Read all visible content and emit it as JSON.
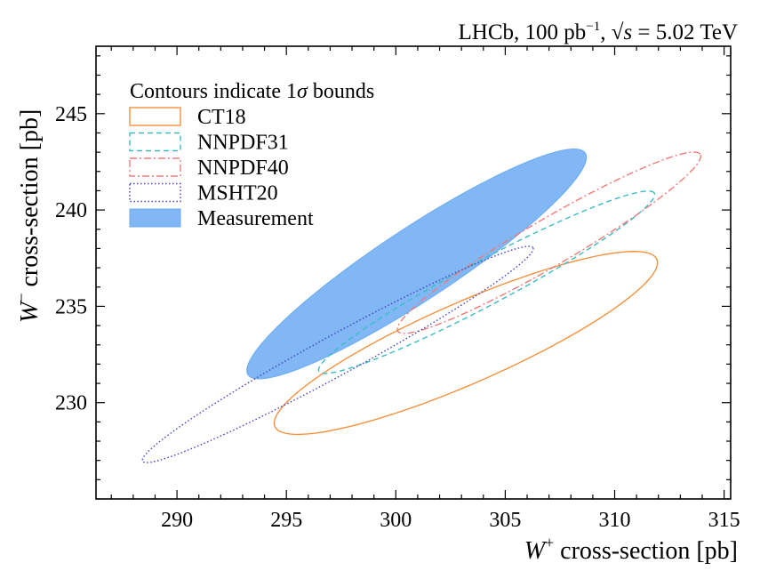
{
  "chart_data": {
    "type": "scatter",
    "header": "LHCb, 100 pb",
    "header_sup": "−1",
    "header_tail": ", ",
    "header_sqrt": "√s",
    "header_energy": " = 5.02 TeV",
    "xlabel_sym": "W",
    "xlabel_sup": "+",
    "xlabel_text": " cross-section [pb]",
    "ylabel_sym": "W",
    "ylabel_sup": "−",
    "ylabel_text": " cross-section [pb]",
    "xlim": [
      286.3,
      315.3
    ],
    "ylim": [
      225.0,
      248.5
    ],
    "xticks": [
      290,
      295,
      300,
      305,
      310,
      315
    ],
    "yticks": [
      230,
      235,
      240,
      245
    ],
    "xtick_labels": [
      "290",
      "295",
      "300",
      "305",
      "310",
      "315"
    ],
    "ytick_labels": [
      "230",
      "235",
      "240",
      "245"
    ],
    "grid": false,
    "legend_position": "top-left",
    "legend_title_prefix": "Contours indicate 1",
    "legend_title_sigma": "σ",
    "legend_title_suffix": " bounds",
    "series": [
      {
        "name": "CT18",
        "style": "solid",
        "fill": false,
        "color": "#f5913e",
        "center": [
          303.2,
          233.1
        ],
        "angle_deg": 26.7,
        "semi_major": 9.75,
        "semi_minor": 2.05
      },
      {
        "name": "NNPDF31",
        "style": "dashed",
        "fill": false,
        "color": "#3bbcc4",
        "center": [
          304.15,
          236.25
        ],
        "angle_deg": 31.2,
        "semi_major": 8.95,
        "semi_minor": 1.12
      },
      {
        "name": "NNPDF40",
        "style": "dashdot",
        "fill": false,
        "color": "#f07a7a",
        "center": [
          307.0,
          238.3
        ],
        "angle_deg": 33.7,
        "semi_major": 8.3,
        "semi_minor": 1.17
      },
      {
        "name": "MSHT20",
        "style": "dotted",
        "fill": false,
        "color": "#4040c8",
        "center": [
          297.35,
          232.5
        ],
        "angle_deg": 31.9,
        "semi_major": 10.5,
        "semi_minor": 1.0
      },
      {
        "name": "Measurement",
        "style": "filled",
        "fill": true,
        "color": "#6aaaf2",
        "center": [
          300.95,
          237.2
        ],
        "angle_deg": 37.0,
        "semi_major": 9.62,
        "semi_minor": 1.8
      }
    ]
  }
}
